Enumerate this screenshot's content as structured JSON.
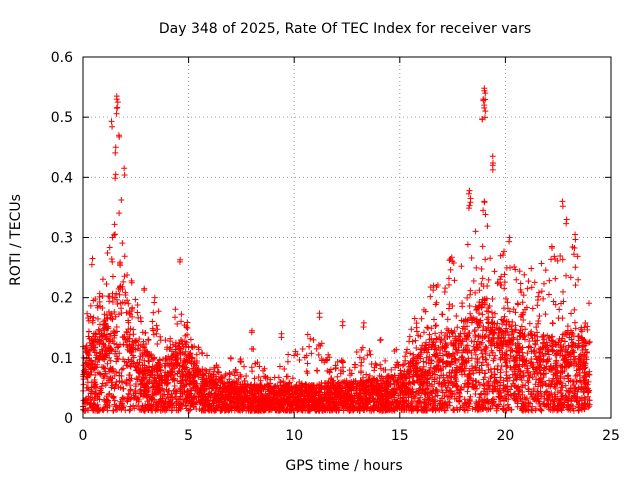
{
  "chart_data": {
    "type": "scatter",
    "title": "Day 348 of 2025, Rate Of TEC Index for receiver vars",
    "xlabel": "GPS time / hours",
    "ylabel": "ROTI / TECUs",
    "xlim": [
      0,
      25
    ],
    "ylim": [
      0,
      0.6
    ],
    "xticks": [
      0,
      5,
      10,
      15,
      20,
      25
    ],
    "yticks": [
      0,
      0.1,
      0.2,
      0.3,
      0.4,
      0.5,
      0.6
    ],
    "xtick_labels": [
      "0",
      "5",
      "10",
      "15",
      "20",
      "25"
    ],
    "ytick_labels": [
      "0",
      "0.1",
      "0.2",
      "0.3",
      "0.4",
      "0.5",
      "0.6"
    ],
    "grid": true,
    "marker": "plus",
    "color": "#ff0000",
    "x_extent_hours": [
      0,
      24
    ],
    "envelope": {
      "x": [
        0,
        0.5,
        1.0,
        1.5,
        1.75,
        2.0,
        2.5,
        3.0,
        3.5,
        4.0,
        4.5,
        4.8,
        5.0,
        5.5,
        6.0,
        7.0,
        8.0,
        9.0,
        10.0,
        11.0,
        12.0,
        13.0,
        14.0,
        15.0,
        15.5,
        16.0,
        17.0,
        18.0,
        18.3,
        19.0,
        19.5,
        20.0,
        20.5,
        21.0,
        22.0,
        22.5,
        23.0,
        23.5,
        24.0
      ],
      "typical": [
        0.09,
        0.1,
        0.12,
        0.16,
        0.2,
        0.16,
        0.1,
        0.08,
        0.07,
        0.07,
        0.09,
        0.1,
        0.08,
        0.06,
        0.05,
        0.04,
        0.035,
        0.035,
        0.035,
        0.035,
        0.04,
        0.04,
        0.045,
        0.05,
        0.07,
        0.09,
        0.1,
        0.12,
        0.14,
        0.15,
        0.13,
        0.12,
        0.12,
        0.11,
        0.1,
        0.1,
        0.11,
        0.1,
        0.09
      ],
      "peak": [
        0.18,
        0.2,
        0.25,
        0.33,
        0.42,
        0.27,
        0.2,
        0.14,
        0.2,
        0.14,
        0.2,
        0.22,
        0.14,
        0.12,
        0.1,
        0.08,
        0.12,
        0.07,
        0.12,
        0.15,
        0.1,
        0.14,
        0.1,
        0.12,
        0.15,
        0.2,
        0.25,
        0.3,
        0.32,
        0.35,
        0.28,
        0.28,
        0.25,
        0.25,
        0.27,
        0.28,
        0.32,
        0.26,
        0.2
      ]
    },
    "outliers": [
      {
        "x": 1.6,
        "y": 0.535
      },
      {
        "x": 1.65,
        "y": 0.525
      },
      {
        "x": 1.6,
        "y": 0.515
      },
      {
        "x": 1.35,
        "y": 0.493
      },
      {
        "x": 1.7,
        "y": 0.47
      },
      {
        "x": 1.55,
        "y": 0.45
      },
      {
        "x": 1.55,
        "y": 0.405
      },
      {
        "x": 1.95,
        "y": 0.415
      },
      {
        "x": 19.0,
        "y": 0.548
      },
      {
        "x": 19.05,
        "y": 0.54
      },
      {
        "x": 18.95,
        "y": 0.53
      },
      {
        "x": 19.0,
        "y": 0.52
      },
      {
        "x": 19.05,
        "y": 0.51
      },
      {
        "x": 18.9,
        "y": 0.497
      },
      {
        "x": 19.4,
        "y": 0.435
      },
      {
        "x": 19.4,
        "y": 0.42
      },
      {
        "x": 18.3,
        "y": 0.378
      },
      {
        "x": 18.35,
        "y": 0.365
      },
      {
        "x": 18.3,
        "y": 0.353
      },
      {
        "x": 19.0,
        "y": 0.36
      },
      {
        "x": 22.7,
        "y": 0.36
      },
      {
        "x": 22.9,
        "y": 0.33
      },
      {
        "x": 11.2,
        "y": 0.174
      },
      {
        "x": 4.6,
        "y": 0.263
      },
      {
        "x": 0.45,
        "y": 0.265
      },
      {
        "x": 20.2,
        "y": 0.3
      },
      {
        "x": 23.3,
        "y": 0.305
      },
      {
        "x": 22.2,
        "y": 0.285
      },
      {
        "x": 2.9,
        "y": 0.215
      },
      {
        "x": 3.4,
        "y": 0.2
      },
      {
        "x": 16.6,
        "y": 0.22
      },
      {
        "x": 13.3,
        "y": 0.158
      },
      {
        "x": 12.3,
        "y": 0.16
      },
      {
        "x": 8.0,
        "y": 0.145
      },
      {
        "x": 9.4,
        "y": 0.14
      },
      {
        "x": 7.0,
        "y": 0.1
      },
      {
        "x": 14.1,
        "y": 0.13
      }
    ]
  }
}
